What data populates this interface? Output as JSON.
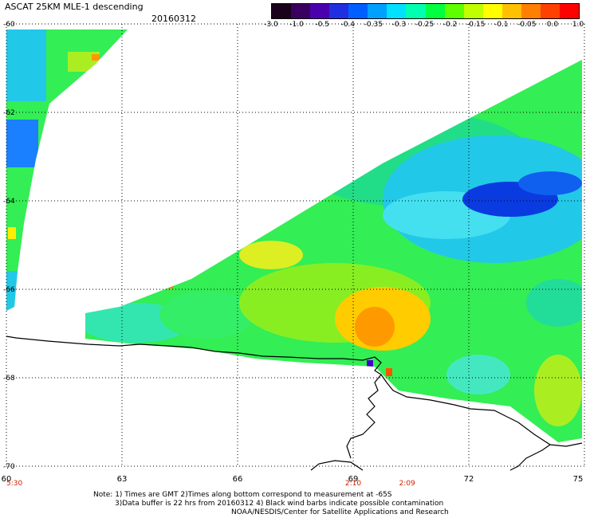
{
  "header": {
    "title": "ASCAT 25KM MLE-1 descending",
    "date": "20160312"
  },
  "colorbar": {
    "labels": [
      "-3.0",
      "-1.0",
      "-0.5",
      "-0.4",
      "-0.35",
      "-0.3",
      "-0.25",
      "-0.2",
      "-0.15",
      "-0.1",
      "-0.05",
      "0.0",
      "1.0"
    ],
    "colors": [
      "#1a001a",
      "#3a0060",
      "#4b00b0",
      "#2030e0",
      "#0060ff",
      "#00a0ff",
      "#00e0ff",
      "#00ffb0",
      "#00ff40",
      "#60ff00",
      "#c0ff00",
      "#ffff00",
      "#ffc000",
      "#ff8000",
      "#ff4000",
      "#ff0000"
    ]
  },
  "map": {
    "x_ticks": [
      "60",
      "63",
      "66",
      "69",
      "72",
      "75"
    ],
    "y_ticks": [
      "-60",
      "-62",
      "-64",
      "-66",
      "-68",
      "-70"
    ],
    "x_range": [
      60,
      75
    ],
    "y_range": [
      -60,
      -70
    ],
    "time_labels": [
      {
        "text": "5:30",
        "x": 60
      },
      {
        "text": "2:10",
        "x": 69
      },
      {
        "text": "2:09",
        "x": 70.4
      }
    ],
    "time_color": "#cc2200"
  },
  "footer": {
    "line1": "Note: 1) Times are GMT 2)Times along bottom correspond to measurement at -65S",
    "line2": "3)Data buffer is 22 hrs from 20160312 4) Black wind barbs indicate possible contamination",
    "line3": "NOAA/NESDIS/Center for Satellite Applications and Research"
  }
}
